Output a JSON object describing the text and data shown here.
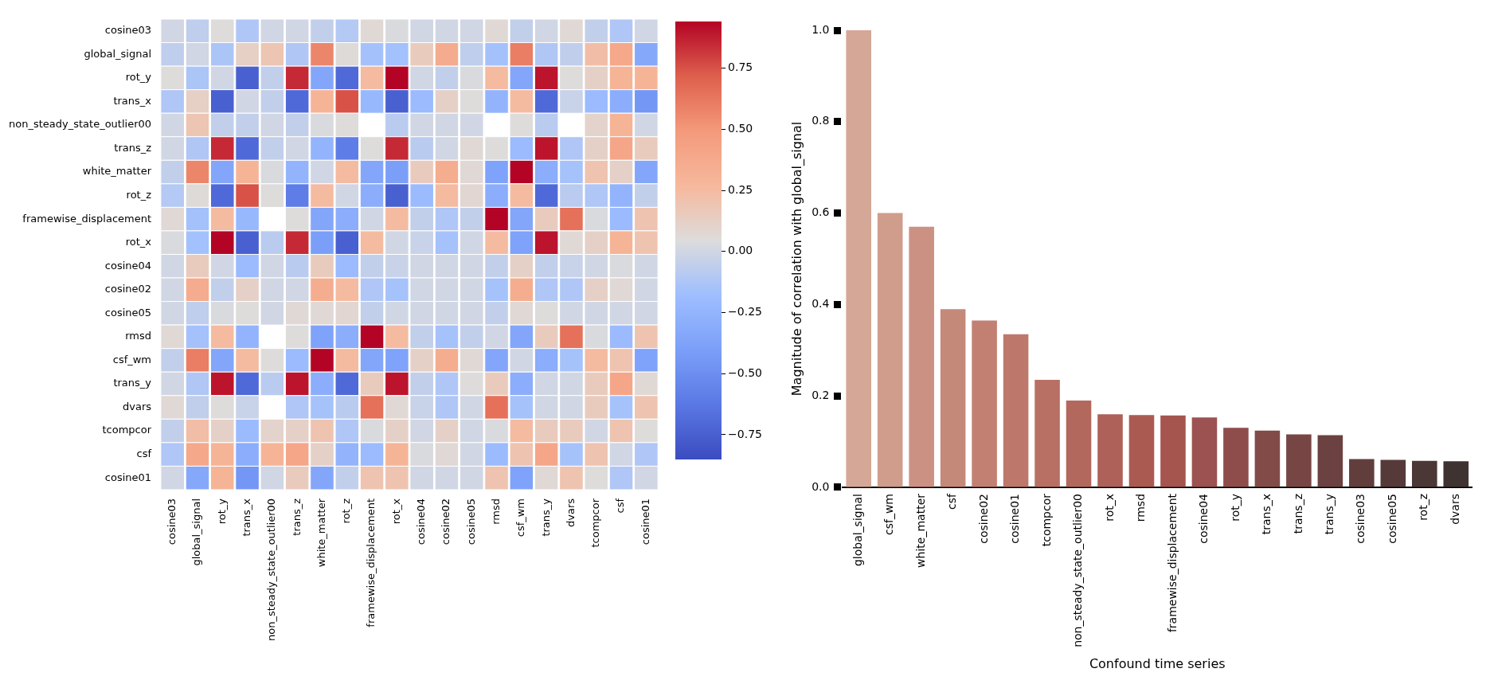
{
  "chart_data": [
    {
      "type": "heatmap",
      "categories": [
        "cosine03",
        "global_signal",
        "rot_y",
        "trans_x",
        "non_steady_state_outlier00",
        "trans_z",
        "white_matter",
        "rot_z",
        "framewise_displacement",
        "rot_x",
        "cosine04",
        "cosine02",
        "cosine05",
        "rmsd",
        "csf_wm",
        "trans_y",
        "dvars",
        "tcompcor",
        "csf",
        "cosine01"
      ],
      "y_categories": [
        "cosine03",
        "global_signal",
        "rot_y",
        "trans_x",
        "non_steady_state_outlier00",
        "trans_z",
        "white_matter",
        "rot_z",
        "framewise_displacement",
        "rot_x",
        "cosine04",
        "cosine02",
        "cosine05",
        "rmsd",
        "csf_wm",
        "trans_y",
        "dvars",
        "tcompcor",
        "csf",
        "cosine01"
      ],
      "cells": [
        [
          0,
          -0.062,
          0.05,
          -0.12,
          0,
          0,
          -0.05,
          -0.1,
          0.07,
          0.03,
          0,
          0,
          0,
          0.07,
          -0.05,
          0,
          0.07,
          -0.05,
          -0.12,
          0
        ],
        [
          -0.062,
          0,
          -0.13,
          0.124,
          0.19,
          -0.116,
          0.57,
          0.058,
          -0.157,
          -0.16,
          0.153,
          0.365,
          -0.06,
          -0.158,
          0.6,
          -0.114,
          -0.057,
          0.235,
          0.39,
          -0.335
        ],
        [
          0.05,
          -0.13,
          0,
          -0.75,
          -0.05,
          0.85,
          -0.35,
          -0.7,
          0.25,
          0.95,
          0,
          -0.05,
          0.03,
          0.25,
          -0.35,
          0.9,
          0.05,
          0.12,
          0.3,
          0.3
        ],
        [
          -0.12,
          0.124,
          -0.75,
          0,
          -0.05,
          -0.7,
          0.3,
          0.75,
          -0.22,
          -0.75,
          -0.2,
          0.12,
          0.05,
          -0.25,
          0.25,
          -0.7,
          -0.03,
          -0.2,
          -0.3,
          -0.45
        ],
        [
          0,
          0.19,
          -0.05,
          -0.05,
          0,
          -0.05,
          0.03,
          0.05,
          null,
          -0.08,
          0,
          0,
          0,
          null,
          0.05,
          -0.08,
          null,
          0.1,
          0.3,
          0
        ],
        [
          0,
          -0.116,
          0.85,
          -0.7,
          -0.05,
          0,
          -0.25,
          -0.6,
          0.05,
          0.85,
          -0.08,
          0,
          0.07,
          0.05,
          -0.2,
          0.9,
          -0.12,
          0.12,
          0.4,
          0.15
        ],
        [
          -0.05,
          0.57,
          -0.35,
          0.3,
          0.03,
          -0.25,
          0,
          0.25,
          -0.35,
          -0.4,
          0.15,
          0.35,
          0.07,
          -0.38,
          0.97,
          -0.3,
          -0.15,
          0.2,
          0.12,
          -0.35
        ],
        [
          -0.1,
          0.058,
          -0.7,
          0.75,
          0.05,
          -0.6,
          0.25,
          0,
          -0.3,
          -0.75,
          -0.2,
          0.25,
          0.08,
          -0.3,
          0.25,
          -0.7,
          -0.08,
          -0.12,
          -0.25,
          -0.05
        ],
        [
          0.07,
          -0.157,
          0.25,
          -0.22,
          null,
          0.05,
          -0.35,
          -0.3,
          0,
          0.25,
          -0.05,
          -0.12,
          -0.05,
          0.97,
          -0.35,
          0.15,
          0.65,
          0.03,
          -0.2,
          0.2
        ],
        [
          0.03,
          -0.16,
          0.95,
          -0.75,
          -0.08,
          0.85,
          -0.4,
          -0.75,
          0.25,
          0,
          -0.03,
          -0.15,
          0,
          0.25,
          -0.38,
          0.9,
          0.07,
          0.12,
          0.3,
          0.2
        ],
        [
          0,
          0.153,
          0,
          -0.2,
          0,
          -0.08,
          0.15,
          -0.2,
          -0.05,
          -0.03,
          0,
          0,
          0,
          -0.05,
          0.12,
          -0.05,
          -0.03,
          0,
          0.03,
          0
        ],
        [
          0,
          0.365,
          -0.05,
          0.12,
          0,
          0,
          0.35,
          0.25,
          -0.12,
          -0.15,
          0,
          0,
          0,
          -0.15,
          0.35,
          -0.12,
          -0.12,
          0.12,
          0.07,
          0
        ],
        [
          0,
          -0.06,
          0.03,
          0.05,
          0,
          0.07,
          0.07,
          0.08,
          -0.05,
          0,
          0,
          0,
          0,
          -0.05,
          0.07,
          0.05,
          0,
          0,
          0,
          0
        ],
        [
          0.07,
          -0.158,
          0.25,
          -0.25,
          null,
          0.05,
          -0.38,
          -0.3,
          0.97,
          0.25,
          -0.05,
          -0.15,
          -0.05,
          0,
          -0.35,
          0.15,
          0.65,
          0.03,
          -0.2,
          0.2
        ],
        [
          -0.05,
          0.6,
          -0.35,
          0.25,
          0.05,
          -0.2,
          0.97,
          0.25,
          -0.35,
          -0.38,
          0.12,
          0.35,
          0.07,
          -0.35,
          0,
          -0.3,
          -0.15,
          0.25,
          0.2,
          -0.38
        ],
        [
          0,
          -0.114,
          0.9,
          -0.7,
          -0.08,
          0.9,
          -0.3,
          -0.7,
          0.15,
          0.9,
          -0.05,
          -0.12,
          0.05,
          0.15,
          -0.3,
          0,
          0,
          0.15,
          0.4,
          0.07
        ],
        [
          0.07,
          -0.057,
          0.05,
          -0.03,
          null,
          -0.12,
          -0.15,
          -0.08,
          0.65,
          0.07,
          -0.03,
          -0.12,
          0,
          0.65,
          -0.15,
          0,
          0,
          0.15,
          -0.15,
          0.2
        ],
        [
          -0.05,
          0.235,
          0.12,
          -0.2,
          0.1,
          0.12,
          0.2,
          -0.12,
          0.03,
          0.12,
          0,
          0.12,
          0,
          0.03,
          0.25,
          0.15,
          0.15,
          0,
          0.2,
          0.05
        ],
        [
          -0.12,
          0.39,
          0.3,
          -0.3,
          0.3,
          0.4,
          0.12,
          -0.25,
          -0.2,
          0.3,
          0.03,
          0.07,
          0,
          -0.2,
          0.2,
          0.4,
          -0.15,
          0.2,
          0,
          -0.12
        ],
        [
          0,
          -0.335,
          0.3,
          -0.45,
          0,
          0.15,
          -0.35,
          -0.05,
          0.2,
          0.2,
          0,
          0,
          0,
          0.2,
          -0.38,
          0.07,
          0.2,
          0.05,
          -0.12,
          0
        ]
      ],
      "clim": [
        -0.85,
        0.94
      ],
      "cticks": [
        {
          "value": 0.75,
          "label": "0.75"
        },
        {
          "value": 0.5,
          "label": "0.50"
        },
        {
          "value": 0.25,
          "label": "0.25"
        },
        {
          "value": 0,
          "label": "0.00"
        },
        {
          "value": -0.25,
          "label": "−0.25"
        },
        {
          "value": -0.5,
          "label": "−0.50"
        },
        {
          "value": -0.75,
          "label": "−0.75"
        }
      ]
    },
    {
      "type": "bar",
      "categories": [
        "global_signal",
        "csf_wm",
        "white_matter",
        "csf",
        "cosine02",
        "cosine01",
        "tcompcor",
        "non_steady_state_outlier00",
        "rot_x",
        "rmsd",
        "framewise_displacement",
        "cosine04",
        "rot_y",
        "trans_x",
        "trans_z",
        "trans_y",
        "cosine03",
        "cosine05",
        "rot_z",
        "dvars"
      ],
      "values": [
        1.0,
        0.6,
        0.57,
        0.39,
        0.365,
        0.335,
        0.235,
        0.19,
        0.16,
        0.158,
        0.157,
        0.153,
        0.13,
        0.124,
        0.116,
        0.114,
        0.062,
        0.06,
        0.058,
        0.057
      ],
      "colors": [
        "#d5a796",
        "#d09c8c",
        "#cb9283",
        "#c5897a",
        "#c28073",
        "#bd786b",
        "#b87064",
        "#b3685e",
        "#ae6158",
        "#ab5a52",
        "#a5544e",
        "#9b5250",
        "#8e4d4b",
        "#824b48",
        "#774644",
        "#6c4141",
        "#613e3c",
        "#563a39",
        "#4b3736",
        "#3f3332"
      ],
      "ylim": [
        0,
        1.0
      ],
      "yticks": [
        {
          "value": 0,
          "label": "0.0"
        },
        {
          "value": 0.2,
          "label": "0.2"
        },
        {
          "value": 0.4,
          "label": "0.4"
        },
        {
          "value": 0.6,
          "label": "0.6"
        },
        {
          "value": 0.8,
          "label": "0.8"
        },
        {
          "value": 1.0,
          "label": "1.0"
        }
      ],
      "ylabel": "Magnitude of correlation with global_signal",
      "xlabel": "Confound time series"
    }
  ]
}
